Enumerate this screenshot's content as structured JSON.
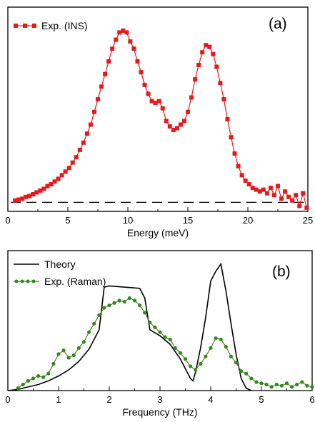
{
  "chart_data": [
    {
      "panel": "(a)",
      "type": "line",
      "xlabel": "Energy (meV)",
      "ylabel": "",
      "xlim": [
        0,
        25
      ],
      "ylim": [
        -0.05,
        1.08
      ],
      "xticks": [
        "0",
        "5",
        "10",
        "15",
        "20",
        "25"
      ],
      "grid": false,
      "legend": "top-left",
      "baseline": {
        "y": 0,
        "style": "dashed",
        "color": "#000000"
      },
      "series": [
        {
          "name": "Exp. (INS)",
          "color": "#e8191c",
          "marker": "square",
          "x": [
            0.6,
            0.9,
            1.2,
            1.5,
            1.8,
            2.1,
            2.4,
            2.7,
            3.0,
            3.3,
            3.6,
            3.9,
            4.2,
            4.5,
            4.8,
            5.1,
            5.4,
            5.7,
            6.0,
            6.3,
            6.6,
            6.9,
            7.2,
            7.5,
            7.8,
            8.1,
            8.4,
            8.7,
            9.0,
            9.3,
            9.6,
            9.9,
            10.2,
            10.5,
            10.8,
            11.1,
            11.4,
            11.7,
            12.0,
            12.3,
            12.6,
            12.9,
            13.2,
            13.5,
            13.8,
            14.1,
            14.4,
            14.7,
            15.0,
            15.3,
            15.6,
            15.9,
            16.2,
            16.5,
            16.8,
            17.1,
            17.4,
            17.7,
            18.0,
            18.3,
            18.6,
            18.9,
            19.2,
            19.5,
            19.8,
            20.1,
            20.4,
            20.7,
            21.0,
            21.3,
            21.6,
            21.9,
            22.2,
            22.5,
            22.8,
            23.1,
            23.4,
            23.7,
            24.0,
            24.3,
            24.6,
            24.9
          ],
          "y": [
            0.01,
            0.015,
            0.02,
            0.03,
            0.035,
            0.045,
            0.055,
            0.065,
            0.075,
            0.09,
            0.1,
            0.115,
            0.13,
            0.15,
            0.17,
            0.19,
            0.22,
            0.25,
            0.29,
            0.33,
            0.38,
            0.43,
            0.5,
            0.57,
            0.64,
            0.71,
            0.78,
            0.85,
            0.9,
            0.94,
            0.95,
            0.94,
            0.89,
            0.85,
            0.78,
            0.72,
            0.65,
            0.6,
            0.56,
            0.55,
            0.56,
            0.52,
            0.45,
            0.42,
            0.4,
            0.41,
            0.43,
            0.45,
            0.5,
            0.58,
            0.68,
            0.76,
            0.83,
            0.87,
            0.86,
            0.82,
            0.75,
            0.66,
            0.57,
            0.46,
            0.36,
            0.27,
            0.2,
            0.15,
            0.12,
            0.1,
            0.08,
            0.07,
            0.06,
            0.07,
            0.05,
            0.08,
            0.04,
            0.09,
            0.02,
            0.06,
            0.03,
            0.01,
            0.04,
            -0.02,
            0.05,
            -0.03
          ]
        }
      ]
    },
    {
      "panel": "(b)",
      "type": "line",
      "xlabel": "Frequency (THz)",
      "ylabel": "",
      "xlim": [
        0,
        6
      ],
      "ylim": [
        0,
        1.15
      ],
      "xticks": [
        "0",
        "1",
        "2",
        "3",
        "4",
        "5",
        "6"
      ],
      "grid": false,
      "legend": "top-left",
      "series": [
        {
          "name": "Theory",
          "color": "#000000",
          "marker": "none",
          "x": [
            0,
            0.2,
            0.4,
            0.6,
            0.8,
            1.0,
            1.2,
            1.4,
            1.6,
            1.8,
            1.9,
            2.0,
            2.6,
            2.7,
            2.8,
            3.0,
            3.2,
            3.4,
            3.6,
            3.65,
            3.7,
            3.8,
            3.9,
            4.0,
            4.1,
            4.2,
            4.3,
            4.4,
            4.5,
            4.6,
            4.7,
            4.8
          ],
          "y": [
            0.0,
            0.01,
            0.03,
            0.05,
            0.08,
            0.12,
            0.17,
            0.24,
            0.34,
            0.5,
            0.85,
            0.86,
            0.84,
            0.76,
            0.5,
            0.45,
            0.38,
            0.26,
            0.1,
            0.08,
            0.15,
            0.35,
            0.6,
            0.9,
            0.98,
            1.04,
            0.82,
            0.55,
            0.3,
            0.1,
            0.02,
            0.0
          ]
        },
        {
          "name": "Exp. (Raman)",
          "color": "#2e8b1f",
          "marker": "circle",
          "x": [
            0.2,
            0.3,
            0.4,
            0.5,
            0.6,
            0.7,
            0.8,
            0.9,
            1.0,
            1.1,
            1.2,
            1.3,
            1.4,
            1.5,
            1.6,
            1.7,
            1.8,
            1.9,
            2.0,
            2.1,
            2.2,
            2.3,
            2.4,
            2.5,
            2.6,
            2.7,
            2.8,
            2.9,
            3.0,
            3.1,
            3.2,
            3.3,
            3.4,
            3.5,
            3.6,
            3.7,
            3.8,
            3.9,
            4.0,
            4.1,
            4.2,
            4.3,
            4.4,
            4.5,
            4.6,
            4.7,
            4.8,
            4.9,
            5.0,
            5.1,
            5.2,
            5.3,
            5.4,
            5.5,
            5.6,
            5.7,
            5.8,
            5.9,
            6.0
          ],
          "y": [
            0.02,
            0.05,
            0.08,
            0.1,
            0.12,
            0.11,
            0.14,
            0.22,
            0.3,
            0.33,
            0.27,
            0.29,
            0.35,
            0.4,
            0.48,
            0.55,
            0.62,
            0.68,
            0.7,
            0.72,
            0.74,
            0.73,
            0.76,
            0.74,
            0.7,
            0.64,
            0.56,
            0.52,
            0.48,
            0.44,
            0.42,
            0.35,
            0.31,
            0.26,
            0.2,
            0.17,
            0.22,
            0.28,
            0.35,
            0.43,
            0.42,
            0.36,
            0.28,
            0.23,
            0.16,
            0.14,
            0.1,
            0.07,
            0.06,
            0.05,
            0.03,
            0.05,
            0.04,
            0.06,
            0.03,
            0.05,
            0.07,
            0.04,
            0.03
          ]
        }
      ]
    }
  ]
}
